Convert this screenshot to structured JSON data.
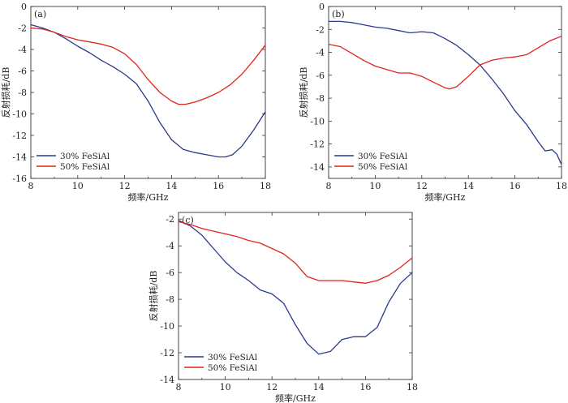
{
  "colors": {
    "blue": "#2a3a8c",
    "red": "#e0231c"
  },
  "chart_data": [
    {
      "type": "line",
      "panel_label": "(a)",
      "xlabel": "频率/GHz",
      "ylabel": "反射损耗/dB",
      "xlim": [
        8,
        18
      ],
      "ylim": [
        -16,
        0
      ],
      "xticks": [
        8,
        10,
        12,
        14,
        16,
        18
      ],
      "yticks": [
        0,
        -2,
        -4,
        -6,
        -8,
        -10,
        -12,
        -14,
        -16
      ],
      "legend_position": "bottom-left",
      "series": [
        {
          "name": "30% FeSiAl",
          "color": "#2a3a8c",
          "x": [
            8,
            8.5,
            9,
            9.5,
            10,
            10.5,
            11,
            11.5,
            12,
            12.5,
            13,
            13.5,
            14,
            14.5,
            15,
            15.5,
            16,
            16.3,
            16.6,
            17,
            17.5,
            18
          ],
          "y": [
            -1.7,
            -2.0,
            -2.4,
            -3.0,
            -3.7,
            -4.3,
            -5.0,
            -5.6,
            -6.3,
            -7.2,
            -8.8,
            -10.8,
            -12.4,
            -13.3,
            -13.6,
            -13.8,
            -14.0,
            -14.0,
            -13.8,
            -13.0,
            -11.5,
            -9.8
          ]
        },
        {
          "name": "50% FeSiAl",
          "color": "#e0231c",
          "x": [
            8,
            8.5,
            9,
            9.5,
            10,
            10.5,
            11,
            11.5,
            12,
            12.5,
            13,
            13.5,
            14,
            14.3,
            14.6,
            15,
            15.5,
            16,
            16.5,
            17,
            17.5,
            18
          ],
          "y": [
            -2.0,
            -2.1,
            -2.4,
            -2.8,
            -3.1,
            -3.3,
            -3.5,
            -3.8,
            -4.4,
            -5.4,
            -6.8,
            -8.0,
            -8.8,
            -9.1,
            -9.1,
            -8.9,
            -8.5,
            -8.0,
            -7.3,
            -6.3,
            -5.0,
            -3.6
          ]
        }
      ]
    },
    {
      "type": "line",
      "panel_label": "(b)",
      "xlabel": "频率/GHz",
      "ylabel": "反射损耗/dB",
      "xlim": [
        8,
        18
      ],
      "ylim": [
        -15,
        0
      ],
      "xticks": [
        8,
        10,
        12,
        14,
        16,
        18
      ],
      "yticks": [
        0,
        -2,
        -4,
        -6,
        -8,
        -10,
        -12,
        -14
      ],
      "legend_position": "bottom-left",
      "series": [
        {
          "name": "30% FeSiAl",
          "color": "#2a3a8c",
          "x": [
            8,
            8.5,
            9,
            9.5,
            10,
            10.5,
            11,
            11.5,
            12,
            12.5,
            13,
            13.5,
            14,
            14.5,
            15,
            15.5,
            16,
            16.5,
            17,
            17.3,
            17.6,
            17.8,
            18
          ],
          "y": [
            -1.3,
            -1.3,
            -1.4,
            -1.6,
            -1.8,
            -1.9,
            -2.1,
            -2.3,
            -2.2,
            -2.3,
            -2.8,
            -3.4,
            -4.2,
            -5.1,
            -6.3,
            -7.6,
            -9.1,
            -10.3,
            -11.8,
            -12.6,
            -12.5,
            -12.9,
            -13.8
          ]
        },
        {
          "name": "50% FeSiAl",
          "color": "#e0231c",
          "x": [
            8,
            8.5,
            9,
            9.5,
            10,
            10.5,
            11,
            11.5,
            12,
            12.5,
            13,
            13.2,
            13.5,
            14,
            14.5,
            15,
            15.5,
            16,
            16.5,
            17,
            17.5,
            18
          ],
          "y": [
            -3.3,
            -3.5,
            -4.1,
            -4.7,
            -5.2,
            -5.5,
            -5.8,
            -5.8,
            -6.1,
            -6.6,
            -7.1,
            -7.2,
            -7.0,
            -6.1,
            -5.1,
            -4.7,
            -4.5,
            -4.4,
            -4.2,
            -3.6,
            -3.0,
            -2.6
          ]
        }
      ]
    },
    {
      "type": "line",
      "panel_label": "(c)",
      "xlabel": "频率/GHz",
      "ylabel": "反射损耗/dB",
      "xlim": [
        8,
        18
      ],
      "ylim": [
        -14,
        -1.5
      ],
      "xticks": [
        8,
        10,
        12,
        14,
        16,
        18
      ],
      "yticks": [
        -2,
        -4,
        -6,
        -8,
        -10,
        -12,
        -14
      ],
      "legend_position": "bottom-left",
      "series": [
        {
          "name": "30% FeSiAl",
          "color": "#2a3a8c",
          "x": [
            8,
            8.5,
            9,
            9.5,
            10,
            10.5,
            11,
            11.5,
            12,
            12.5,
            13,
            13.5,
            14,
            14.5,
            15,
            15.5,
            16,
            16.5,
            17,
            17.5,
            18
          ],
          "y": [
            -2.1,
            -2.5,
            -3.2,
            -4.2,
            -5.2,
            -6.0,
            -6.6,
            -7.3,
            -7.6,
            -8.3,
            -9.9,
            -11.3,
            -12.1,
            -11.9,
            -11.0,
            -10.8,
            -10.8,
            -10.1,
            -8.2,
            -6.8,
            -6.0
          ]
        },
        {
          "name": "50% FeSiAl",
          "color": "#e0231c",
          "x": [
            8,
            8.5,
            9,
            9.5,
            10,
            10.5,
            11,
            11.5,
            12,
            12.5,
            13,
            13.5,
            14,
            14.5,
            15,
            15.5,
            16,
            16.5,
            17,
            17.5,
            18
          ],
          "y": [
            -2.2,
            -2.4,
            -2.7,
            -2.9,
            -3.1,
            -3.3,
            -3.6,
            -3.8,
            -4.2,
            -4.6,
            -5.3,
            -6.3,
            -6.6,
            -6.6,
            -6.6,
            -6.7,
            -6.8,
            -6.6,
            -6.2,
            -5.6,
            -4.9
          ]
        }
      ]
    }
  ]
}
